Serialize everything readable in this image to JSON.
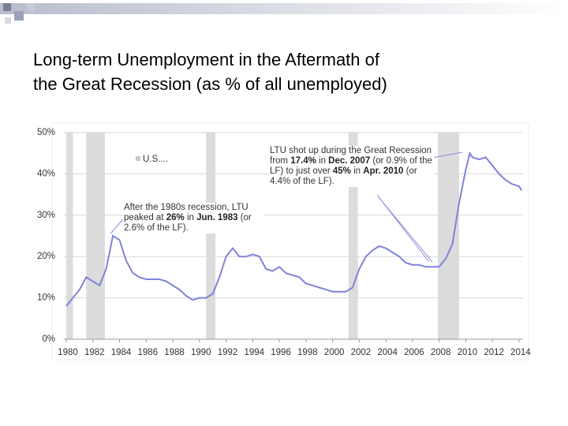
{
  "title_lines": [
    "Long-term Unemployment in the Aftermath of",
    "the Great Recession (as % of all unemployed)"
  ],
  "chart_data": {
    "type": "line",
    "x": [
      1980.0,
      1980.5,
      1981.0,
      1981.5,
      1982.0,
      1982.5,
      1983.0,
      1983.5,
      1984.0,
      1984.5,
      1985.0,
      1985.5,
      1986.0,
      1986.5,
      1987.0,
      1987.5,
      1988.0,
      1988.5,
      1989.0,
      1989.5,
      1990.0,
      1990.5,
      1991.0,
      1991.5,
      1992.0,
      1992.5,
      1993.0,
      1993.5,
      1994.0,
      1994.5,
      1995.0,
      1995.5,
      1996.0,
      1996.5,
      1997.0,
      1997.5,
      1998.0,
      1998.5,
      1999.0,
      1999.5,
      2000.0,
      2000.5,
      2001.0,
      2001.5,
      2002.0,
      2002.5,
      2003.0,
      2003.5,
      2004.0,
      2004.5,
      2005.0,
      2005.5,
      2006.0,
      2006.5,
      2007.0,
      2007.5,
      2008.0,
      2008.5,
      2009.0,
      2009.5,
      2010.0,
      2010.3,
      2010.5,
      2011.0,
      2011.5,
      2012.0,
      2012.5,
      2013.0,
      2013.5,
      2014.0,
      2014.2
    ],
    "series": [
      {
        "name": "U.S....",
        "color": "#7f83d8",
        "values": [
          8,
          10,
          12,
          15,
          14,
          13,
          17,
          25,
          24,
          19,
          16,
          15,
          14.5,
          14.5,
          14.5,
          14,
          13,
          12,
          10.5,
          9.5,
          10,
          10,
          11,
          15,
          20,
          22,
          20,
          20,
          20.5,
          20,
          17,
          16.5,
          17.5,
          16,
          15.5,
          15,
          13.5,
          13,
          12.5,
          12,
          11.5,
          11.5,
          11.5,
          12.5,
          17,
          20,
          21.5,
          22.5,
          22,
          21,
          20,
          18.5,
          18,
          18,
          17.5,
          17.5,
          17.5,
          19.5,
          23,
          33,
          41,
          45,
          44,
          43.5,
          44,
          42,
          40,
          38.5,
          37.5,
          37,
          36
        ]
      }
    ],
    "recessions": [
      [
        1980.0,
        1980.5
      ],
      [
        1981.5,
        1982.9
      ],
      [
        1990.5,
        1991.2
      ],
      [
        2001.2,
        2001.9
      ],
      [
        2007.9,
        2009.5
      ]
    ],
    "recession_color": "#dcdcdc",
    "xlim": [
      1979.8,
      2014.3
    ],
    "xticks": [
      1980,
      1982,
      1984,
      1986,
      1988,
      1990,
      1992,
      1994,
      1996,
      1998,
      2000,
      2002,
      2004,
      2006,
      2008,
      2010,
      2012,
      2014
    ],
    "ylim": [
      0,
      50
    ],
    "yticks": [
      {
        "value": 0,
        "label": "0%"
      },
      {
        "value": 10,
        "label": "10%"
      },
      {
        "value": 20,
        "label": "20%"
      },
      {
        "value": 30,
        "label": "30%"
      },
      {
        "value": 40,
        "label": "40%"
      },
      {
        "value": 50,
        "label": "50%"
      }
    ],
    "grid": true,
    "annotations": [
      [
        {
          "text": "LTU shot up during the Great Recession from ",
          "bold": false
        },
        {
          "text": "17.4%",
          "bold": true
        },
        {
          "text": " in ",
          "bold": false
        },
        {
          "text": "Dec. 2007",
          "bold": true
        },
        {
          "text": " (or 0.9% of the LF) to just over ",
          "bold": false
        },
        {
          "text": "45%",
          "bold": true
        },
        {
          "text": " in ",
          "bold": false
        },
        {
          "text": "Apr. 2010",
          "bold": true
        },
        {
          "text": " (or 4.4% of the LF).",
          "bold": false
        }
      ],
      [
        {
          "text": "After the 1980s recession, LTU peaked at ",
          "bold": false
        },
        {
          "text": "26%",
          "bold": true
        },
        {
          "text": " in ",
          "bold": false
        },
        {
          "text": "Jun. 1983",
          "bold": true
        },
        {
          "text": " (or 2.6% of the LF).",
          "bold": false
        }
      ]
    ]
  }
}
